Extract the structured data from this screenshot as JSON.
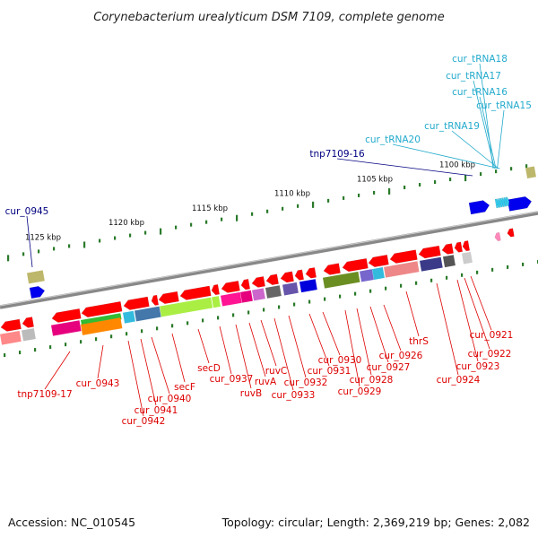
{
  "title": "Corynebacterium urealyticum DSM 7109, complete genome",
  "footer": {
    "accession": "Accession: NC_010545",
    "summary": "Topology: circular; Length: 2,369,219 bp; Genes: 2,082"
  },
  "scale_labels": [
    "1100 kbp",
    "1105 kbp",
    "1110 kbp",
    "1115 kbp",
    "1120 kbp",
    "1125 kbp"
  ],
  "gene_labels": {
    "rna": [
      "cur_tRNA18",
      "cur_tRNA17",
      "cur_tRNA16",
      "cur_tRNA15",
      "cur_tRNA19",
      "cur_tRNA20"
    ],
    "blue": [
      "tnp7109-16",
      "cur_0945"
    ],
    "red": [
      "tnp7109-17",
      "cur_0943",
      "cur_0942",
      "cur_0941",
      "cur_0940",
      "secF",
      "secD",
      "cur_0937",
      "ruvB",
      "ruvA",
      "ruvC",
      "cur_0933",
      "cur_0932",
      "cur_0931",
      "cur_0930",
      "cur_0929",
      "cur_0928",
      "cur_0927",
      "cur_0926",
      "thrS",
      "cur_0924",
      "cur_0923",
      "cur_0922",
      "cur_0921"
    ]
  },
  "colors": {
    "forward_gene": "#0000ee",
    "reverse_gene": "#ff0000",
    "rna_gene": "#33ccee",
    "label_red": "#dd0000",
    "label_blue": "#000080",
    "label_rna": "#22aacc",
    "backbone": "#888888",
    "ticks": "#2a7a2a"
  }
}
